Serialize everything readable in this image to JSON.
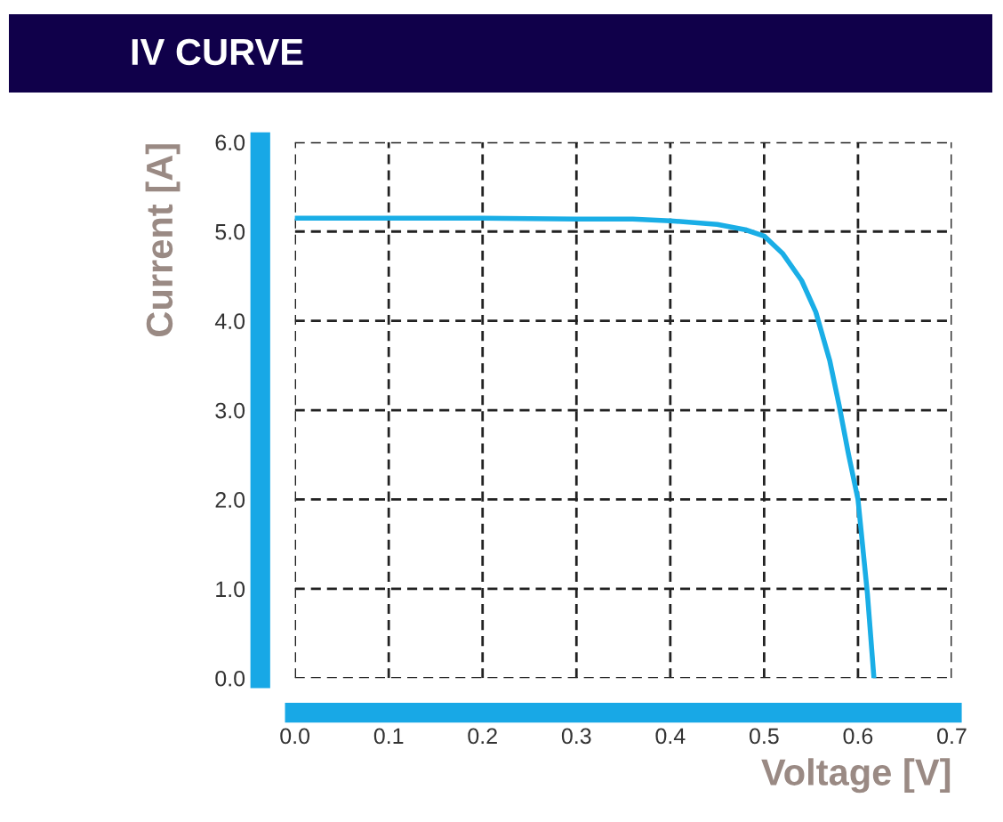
{
  "chart_data": {
    "type": "line",
    "title": "IV CURVE",
    "xlabel": "Voltage [V]",
    "ylabel": "Current [A]",
    "x": [
      0,
      0.1,
      0.2,
      0.3,
      0.36,
      0.4,
      0.45,
      0.48,
      0.5,
      0.52,
      0.54,
      0.555,
      0.57,
      0.58,
      0.59,
      0.6,
      0.61,
      0.617
    ],
    "series": [
      {
        "color": "#1aaee6",
        "values": [
          5.15,
          5.15,
          5.15,
          5.14,
          5.14,
          5.12,
          5.08,
          5.02,
          4.95,
          4.75,
          4.45,
          4.1,
          3.55,
          3.05,
          2.5,
          2.0,
          0.95,
          0
        ]
      }
    ],
    "xlim": [
      0,
      0.7
    ],
    "ylim": [
      0,
      6
    ],
    "xticks": [
      {
        "value": 0,
        "label": "0.0"
      },
      {
        "value": 0.1,
        "label": "0.1"
      },
      {
        "value": 0.2,
        "label": "0.2"
      },
      {
        "value": 0.3,
        "label": "0.3"
      },
      {
        "value": 0.4,
        "label": "0.4"
      },
      {
        "value": 0.5,
        "label": "0.5"
      },
      {
        "value": 0.6,
        "label": "0.6"
      },
      {
        "value": 0.7,
        "label": "0.7"
      }
    ],
    "yticks": [
      {
        "value": 0,
        "label": "0.0"
      },
      {
        "value": 1,
        "label": "1.0"
      },
      {
        "value": 2,
        "label": "2.0"
      },
      {
        "value": 3,
        "label": "3.0"
      },
      {
        "value": 4,
        "label": "4.0"
      },
      {
        "value": 5,
        "label": "5.0"
      },
      {
        "value": 6,
        "label": "6.0"
      }
    ],
    "grid": true,
    "line_style": "solid",
    "marker": "none"
  }
}
